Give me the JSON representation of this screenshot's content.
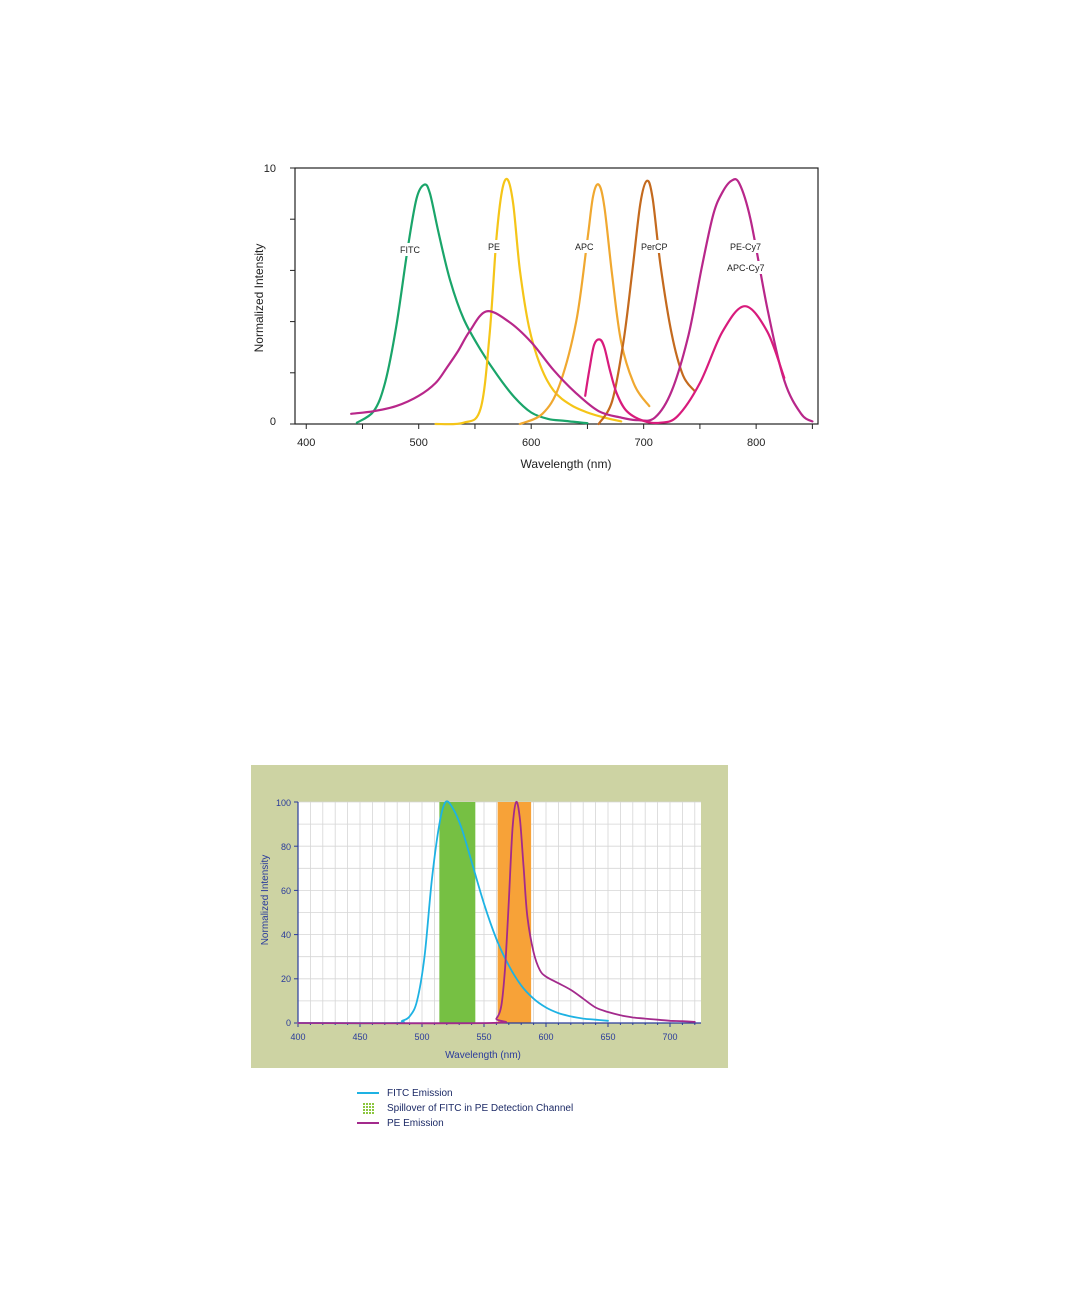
{
  "chart_data": [
    {
      "type": "line",
      "title": "",
      "xlabel": "Wavelength (nm)",
      "ylabel": "Normalized Intensity",
      "xlim": [
        390,
        855
      ],
      "ylim": [
        0,
        10
      ],
      "x_ticks": [
        "400",
        "500",
        "600",
        "700",
        "800"
      ],
      "y_ticks": [
        "0",
        "10"
      ],
      "y_tick_values": [
        0,
        2,
        4,
        6,
        8,
        10
      ],
      "grid": false,
      "annotations": [
        "FITC",
        "PE",
        "APC",
        "PerCP",
        "PE-Cy7",
        "APC-Cy7"
      ],
      "series": [
        {
          "name": "FITC",
          "color": "#1aa56a",
          "x": [
            445,
            460,
            470,
            480,
            490,
            498,
            505,
            510,
            518,
            528,
            540,
            555,
            570,
            585,
            600,
            615,
            630,
            650
          ],
          "y": [
            0.05,
            0.5,
            1.6,
            3.8,
            6.8,
            8.8,
            9.35,
            9.0,
            7.4,
            5.6,
            4.1,
            2.9,
            1.9,
            1.05,
            0.45,
            0.2,
            0.12,
            0.03
          ]
        },
        {
          "name": "PE",
          "color": "#f5c518",
          "x": [
            515,
            540,
            555,
            563,
            569,
            574,
            579,
            584,
            590,
            598,
            608,
            620,
            635,
            650,
            665,
            680
          ],
          "y": [
            0.0,
            0.05,
            0.6,
            3.5,
            7.2,
            9.1,
            9.55,
            8.6,
            6.0,
            3.8,
            2.3,
            1.3,
            0.75,
            0.45,
            0.25,
            0.1
          ]
        },
        {
          "name": "APC",
          "color": "#f0a830",
          "x": [
            590,
            610,
            625,
            640,
            650,
            655,
            660,
            665,
            672,
            680,
            692,
            705
          ],
          "y": [
            0.0,
            0.4,
            1.5,
            4.0,
            7.2,
            8.9,
            9.35,
            8.5,
            5.8,
            3.2,
            1.5,
            0.7
          ]
        },
        {
          "name": "PerCP",
          "color": "#c46a1e",
          "x": [
            660,
            672,
            682,
            690,
            697,
            703,
            708,
            715,
            725,
            735,
            745
          ],
          "y": [
            0.0,
            0.9,
            3.2,
            6.0,
            8.6,
            9.5,
            8.8,
            6.2,
            3.5,
            1.9,
            1.3
          ]
        },
        {
          "name": "PE-Cy7",
          "color": "#b8278a",
          "x": [
            440,
            460,
            480,
            500,
            515,
            525,
            535,
            545,
            560,
            580,
            600,
            620,
            640,
            660,
            680,
            695,
            710,
            725,
            740,
            752,
            762,
            770,
            778,
            785,
            795,
            810,
            825,
            840,
            850
          ],
          "y": [
            0.4,
            0.5,
            0.7,
            1.1,
            1.6,
            2.2,
            2.85,
            3.6,
            4.4,
            4.0,
            3.2,
            2.1,
            1.2,
            0.5,
            0.25,
            0.15,
            0.25,
            1.3,
            3.5,
            6.2,
            8.2,
            9.05,
            9.5,
            9.4,
            8.0,
            4.5,
            1.7,
            0.4,
            0.1
          ]
        },
        {
          "name": "APC-Cy7",
          "color": "#d81b7c",
          "x": [
            648,
            652,
            656,
            661,
            665,
            670,
            676,
            685,
            700,
            715,
            730,
            750,
            770,
            790,
            810,
            825
          ],
          "y": [
            1.1,
            2.2,
            3.1,
            3.3,
            3.0,
            2.1,
            1.2,
            0.5,
            0.12,
            0.05,
            0.3,
            1.6,
            3.6,
            4.6,
            3.6,
            1.8
          ]
        }
      ]
    },
    {
      "type": "line",
      "title": "",
      "xlabel": "Wavelength (nm)",
      "ylabel": "Normalized Intensity",
      "xlim": [
        400,
        725
      ],
      "ylim": [
        0,
        100
      ],
      "x_ticks": [
        "400",
        "450",
        "500",
        "550",
        "600",
        "650",
        "700"
      ],
      "y_ticks": [
        "0",
        "20",
        "40",
        "60",
        "80",
        "100"
      ],
      "grid": true,
      "background": "#cdd3a3",
      "axis_color": "#2a3b9b",
      "bands": [
        {
          "x0": 514,
          "x1": 543,
          "color": "#76c043"
        },
        {
          "x0": 561,
          "x1": 588,
          "color": "#f7a238"
        }
      ],
      "series": [
        {
          "name": "FITC Emission",
          "color": "#1eb2e3",
          "x": [
            400,
            478,
            484,
            490,
            496,
            502,
            508,
            514,
            519,
            525,
            532,
            540,
            550,
            560,
            570,
            580,
            590,
            600,
            610,
            620,
            630,
            640,
            650
          ],
          "y": [
            0,
            0,
            1,
            3,
            10,
            30,
            65,
            90,
            100,
            97,
            88,
            73,
            54,
            38,
            26,
            17,
            11,
            7,
            4.5,
            3,
            2,
            1.5,
            1
          ]
        },
        {
          "name": "PE Emission",
          "color": "#a32a8c",
          "x": [
            400,
            555,
            560,
            564,
            567,
            570,
            573,
            576,
            579,
            582,
            585,
            590,
            595,
            600,
            610,
            620,
            630,
            640,
            650,
            660,
            670,
            680,
            690,
            700,
            710,
            720
          ],
          "y": [
            0,
            0,
            2,
            8,
            25,
            55,
            88,
            100,
            92,
            70,
            48,
            32,
            24,
            21,
            18,
            15,
            11,
            7,
            5,
            3.5,
            2.5,
            2,
            1.5,
            1,
            0.8,
            0.5
          ]
        }
      ],
      "legend": [
        {
          "label": "FITC Emission",
          "color": "#1eb2e3",
          "kind": "line"
        },
        {
          "label": "Spillover of FITC in PE Detection Channel",
          "color": "#8cc63f",
          "kind": "hatch"
        },
        {
          "label": "PE Emission",
          "color": "#a32a8c",
          "kind": "line"
        }
      ]
    }
  ]
}
